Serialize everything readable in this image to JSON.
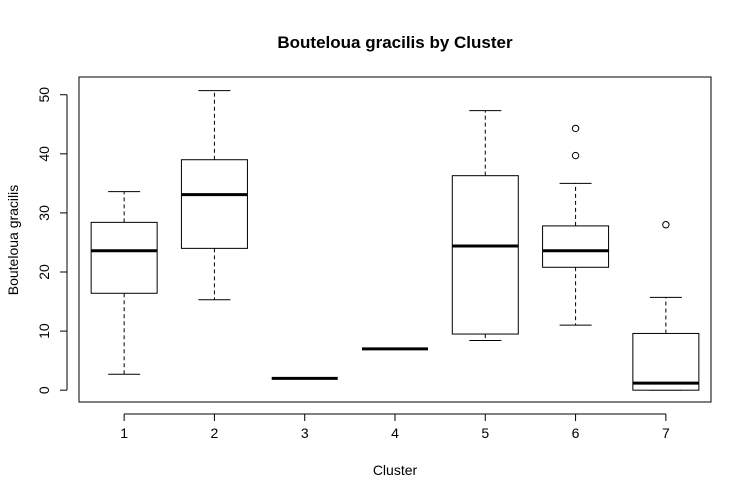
{
  "chart_data": {
    "type": "boxplot",
    "title": "Bouteloua gracilis by Cluster",
    "xlabel": "Cluster",
    "ylabel": "Bouteloua gracilis",
    "ylim": [
      -2,
      53
    ],
    "yticks": [
      0,
      10,
      20,
      30,
      40,
      50
    ],
    "categories": [
      "1",
      "2",
      "3",
      "4",
      "5",
      "6",
      "7"
    ],
    "boxes": [
      {
        "category": "1",
        "whisker_low": 2.7,
        "q1": 16.4,
        "median": 23.6,
        "q3": 28.4,
        "whisker_high": 33.6,
        "outliers": []
      },
      {
        "category": "2",
        "whisker_low": 15.3,
        "q1": 24.0,
        "median": 33.1,
        "q3": 39.0,
        "whisker_high": 50.7,
        "outliers": []
      },
      {
        "category": "3",
        "whisker_low": 2.0,
        "q1": 2.0,
        "median": 2.0,
        "q3": 2.0,
        "whisker_high": 2.0,
        "outliers": []
      },
      {
        "category": "4",
        "whisker_low": 7.0,
        "q1": 7.0,
        "median": 7.0,
        "q3": 7.0,
        "whisker_high": 7.0,
        "outliers": []
      },
      {
        "category": "5",
        "whisker_low": 8.4,
        "q1": 9.5,
        "median": 24.4,
        "q3": 36.3,
        "whisker_high": 47.3,
        "outliers": []
      },
      {
        "category": "6",
        "whisker_low": 11.0,
        "q1": 20.8,
        "median": 23.6,
        "q3": 27.8,
        "whisker_high": 35.0,
        "outliers": [
          39.7,
          44.3
        ]
      },
      {
        "category": "7",
        "whisker_low": 0.0,
        "q1": 0.0,
        "median": 1.2,
        "q3": 9.6,
        "whisker_high": 15.7,
        "outliers": [
          28.0
        ]
      }
    ],
    "grid": false,
    "legend": "none"
  }
}
